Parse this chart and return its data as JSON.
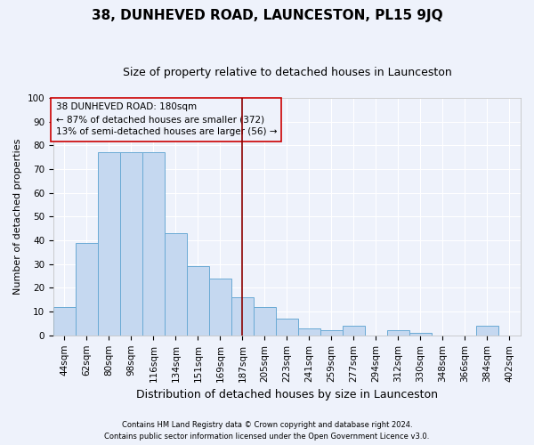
{
  "title": "38, DUNHEVED ROAD, LAUNCESTON, PL15 9JQ",
  "subtitle": "Size of property relative to detached houses in Launceston",
  "xlabel": "Distribution of detached houses by size in Launceston",
  "ylabel": "Number of detached properties",
  "categories": [
    "44sqm",
    "62sqm",
    "80sqm",
    "98sqm",
    "116sqm",
    "134sqm",
    "151sqm",
    "169sqm",
    "187sqm",
    "205sqm",
    "223sqm",
    "241sqm",
    "259sqm",
    "277sqm",
    "294sqm",
    "312sqm",
    "330sqm",
    "348sqm",
    "366sqm",
    "384sqm",
    "402sqm"
  ],
  "values": [
    12,
    39,
    77,
    77,
    77,
    43,
    29,
    24,
    16,
    12,
    7,
    3,
    2,
    4,
    0,
    2,
    1,
    0,
    0,
    4,
    0
  ],
  "bar_color": "#c5d8f0",
  "bar_edge_color": "#6aaad4",
  "vline_x_index": 8,
  "vline_color": "#8b0000",
  "annotation_title": "38 DUNHEVED ROAD: 180sqm",
  "annotation_line1": "← 87% of detached houses are smaller (372)",
  "annotation_line2": "13% of semi-detached houses are larger (56) →",
  "annotation_box_color": "#cc0000",
  "ylim": [
    0,
    100
  ],
  "yticks": [
    0,
    10,
    20,
    30,
    40,
    50,
    60,
    70,
    80,
    90,
    100
  ],
  "footnote1": "Contains HM Land Registry data © Crown copyright and database right 2024.",
  "footnote2": "Contains public sector information licensed under the Open Government Licence v3.0.",
  "bg_color": "#eef2fb",
  "grid_color": "#ffffff",
  "title_fontsize": 11,
  "subtitle_fontsize": 9,
  "xlabel_fontsize": 9,
  "ylabel_fontsize": 8,
  "tick_fontsize": 7.5,
  "annot_fontsize": 7.5,
  "footnote_fontsize": 6
}
